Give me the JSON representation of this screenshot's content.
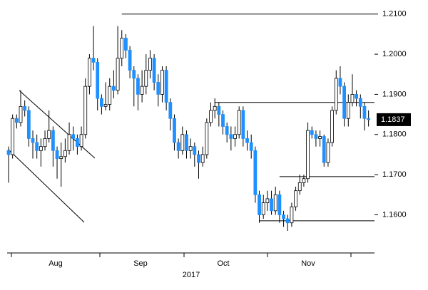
{
  "chart_data": {
    "type": "candlestick",
    "open": [
      1.176,
      1.175,
      1.184,
      1.183,
      1.187,
      1.186,
      1.179,
      1.178,
      1.176,
      1.177,
      1.179,
      1.181,
      1.176,
      1.174,
      1.1745,
      1.176,
      1.18,
      1.179,
      1.177,
      1.18,
      1.192,
      1.199,
      1.198,
      1.189,
      1.187,
      1.1875,
      1.192,
      1.191,
      1.199,
      1.204,
      1.201,
      1.196,
      1.194,
      1.19,
      1.192,
      1.196,
      1.199,
      1.193,
      1.19,
      1.196,
      1.188,
      1.184,
      1.178,
      1.176,
      1.18,
      1.176,
      1.177,
      1.175,
      1.173,
      1.175,
      1.183,
      1.186,
      1.187,
      1.185,
      1.182,
      1.18,
      1.179,
      1.18,
      1.186,
      1.179,
      1.178,
      1.176,
      1.165,
      1.16,
      1.163,
      1.164,
      1.161,
      1.165,
      1.16,
      1.159,
      1.158,
      1.162,
      1.166,
      1.168,
      1.169,
      1.181,
      1.18,
      1.179,
      1.1795,
      1.173,
      1.178,
      1.186,
      1.194,
      1.192,
      1.184,
      1.188,
      1.19,
      1.189,
      1.187,
      1.184
    ],
    "high": [
      1.177,
      1.185,
      1.185,
      1.191,
      1.1885,
      1.187,
      1.181,
      1.18,
      1.179,
      1.181,
      1.186,
      1.182,
      1.177,
      1.178,
      1.179,
      1.183,
      1.182,
      1.18,
      1.182,
      1.194,
      1.2,
      1.207,
      1.199,
      1.19,
      1.193,
      1.194,
      1.196,
      1.207,
      1.206,
      1.205,
      1.202,
      1.197,
      1.195,
      1.196,
      1.2,
      1.201,
      1.2,
      1.195,
      1.197,
      1.197,
      1.189,
      1.185,
      1.179,
      1.182,
      1.181,
      1.179,
      1.178,
      1.176,
      1.177,
      1.184,
      1.188,
      1.189,
      1.188,
      1.186,
      1.183,
      1.182,
      1.182,
      1.187,
      1.187,
      1.181,
      1.18,
      1.177,
      1.166,
      1.165,
      1.166,
      1.166,
      1.167,
      1.166,
      1.161,
      1.16,
      1.163,
      1.167,
      1.17,
      1.17,
      1.183,
      1.182,
      1.181,
      1.181,
      1.18,
      1.179,
      1.187,
      1.196,
      1.197,
      1.193,
      1.19,
      1.195,
      1.191,
      1.19,
      1.188,
      1.186
    ],
    "low": [
      1.168,
      1.174,
      1.1815,
      1.182,
      1.1845,
      1.177,
      1.174,
      1.174,
      1.172,
      1.176,
      1.178,
      1.172,
      1.169,
      1.167,
      1.173,
      1.175,
      1.176,
      1.175,
      1.176,
      1.179,
      1.19,
      1.196,
      1.186,
      1.185,
      1.186,
      1.186,
      1.189,
      1.19,
      1.197,
      1.199,
      1.194,
      1.187,
      1.186,
      1.188,
      1.19,
      1.194,
      1.191,
      1.187,
      1.188,
      1.186,
      1.181,
      1.176,
      1.174,
      1.175,
      1.174,
      1.174,
      1.172,
      1.169,
      1.172,
      1.174,
      1.182,
      1.184,
      1.182,
      1.18,
      1.178,
      1.176,
      1.177,
      1.179,
      1.177,
      1.176,
      1.174,
      1.163,
      1.158,
      1.159,
      1.161,
      1.16,
      1.16,
      1.158,
      1.157,
      1.156,
      1.157,
      1.161,
      1.165,
      1.167,
      1.168,
      1.179,
      1.177,
      1.177,
      1.172,
      1.172,
      1.177,
      1.185,
      1.19,
      1.182,
      1.182,
      1.187,
      1.187,
      1.184,
      1.181,
      1.182
    ],
    "close": [
      1.175,
      1.184,
      1.183,
      1.187,
      1.186,
      1.179,
      1.178,
      1.176,
      1.177,
      1.179,
      1.181,
      1.176,
      1.174,
      1.1745,
      1.176,
      1.18,
      1.179,
      1.177,
      1.18,
      1.192,
      1.199,
      1.198,
      1.189,
      1.187,
      1.1875,
      1.192,
      1.191,
      1.199,
      1.204,
      1.201,
      1.196,
      1.194,
      1.19,
      1.192,
      1.196,
      1.199,
      1.193,
      1.19,
      1.196,
      1.188,
      1.184,
      1.178,
      1.176,
      1.18,
      1.176,
      1.177,
      1.175,
      1.173,
      1.175,
      1.183,
      1.186,
      1.187,
      1.185,
      1.182,
      1.18,
      1.179,
      1.18,
      1.186,
      1.179,
      1.178,
      1.176,
      1.165,
      1.16,
      1.163,
      1.164,
      1.161,
      1.165,
      1.16,
      1.159,
      1.158,
      1.162,
      1.166,
      1.168,
      1.169,
      1.181,
      1.18,
      1.179,
      1.1795,
      1.173,
      1.178,
      1.186,
      1.194,
      1.192,
      1.184,
      1.188,
      1.19,
      1.189,
      1.187,
      1.184,
      1.1837
    ],
    "up_color": "#ffffff",
    "down_color": "#1e90ff",
    "ylim": [
      1.1505,
      1.2135
    ],
    "yticks": [
      {
        "value": 1.16,
        "label": "1.1600"
      },
      {
        "value": 1.17,
        "label": "1.1700"
      },
      {
        "value": 1.18,
        "label": "1.1800"
      },
      {
        "value": 1.19,
        "label": "1.1900"
      },
      {
        "value": 1.2,
        "label": "1.2000"
      },
      {
        "value": 1.21,
        "label": "1.2100"
      }
    ],
    "levels": [
      1.21,
      1.188,
      1.1695,
      1.1585
    ],
    "last_price": 1.1837,
    "x_labels": [
      "Aug",
      "Sep",
      "Oct",
      "Nov"
    ],
    "year_label": "2017"
  }
}
